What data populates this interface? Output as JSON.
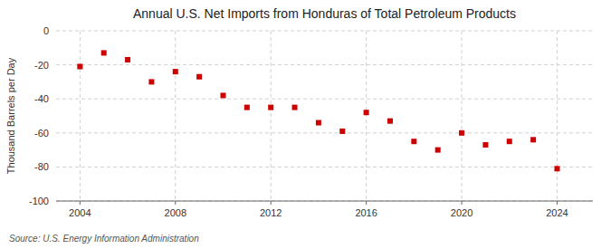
{
  "chart_data": {
    "type": "scatter",
    "title": "Annual U.S. Net Imports from Honduras of Total Petroleum Products",
    "ylabel": "Thousand Barrels per Day",
    "source": "Source: U.S. Energy Information Administration",
    "x": [
      2004,
      2005,
      2006,
      2007,
      2008,
      2009,
      2010,
      2011,
      2012,
      2013,
      2014,
      2015,
      2016,
      2017,
      2018,
      2019,
      2020,
      2021,
      2022,
      2023,
      2024
    ],
    "values": [
      -21,
      -13,
      -17,
      -30,
      -24,
      -27,
      -38,
      -45,
      -45,
      -45,
      -54,
      -59,
      -48,
      -53,
      -65,
      -70,
      -60,
      -67,
      -65,
      -64,
      -81
    ],
    "color": "#cc0000",
    "marker": "square",
    "xlim": [
      2003.0,
      2025.5
    ],
    "ylim": [
      -100,
      0
    ],
    "xticks": [
      2004,
      2008,
      2012,
      2016,
      2020,
      2024
    ],
    "yticks": [
      0,
      -20,
      -40,
      -60,
      -80,
      -100
    ],
    "grid": true
  }
}
